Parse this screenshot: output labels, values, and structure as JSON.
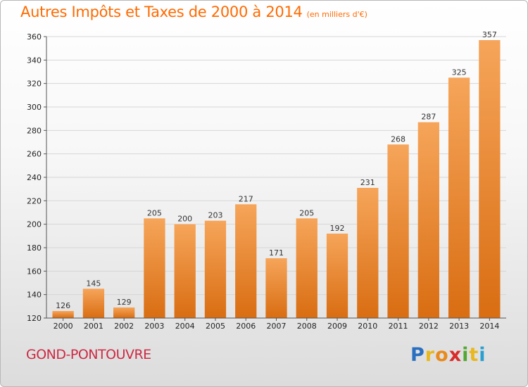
{
  "chart_data": {
    "type": "bar",
    "title": "Autres Impôts et Taxes de 2000 à 2014",
    "unit_note": "(en milliers d'€)",
    "categories": [
      "2000",
      "2001",
      "2002",
      "2003",
      "2004",
      "2005",
      "2006",
      "2007",
      "2008",
      "2009",
      "2010",
      "2011",
      "2012",
      "2013",
      "2014"
    ],
    "values": [
      126,
      145,
      129,
      205,
      200,
      203,
      217,
      171,
      205,
      192,
      231,
      268,
      287,
      325,
      357
    ],
    "ylim": [
      120,
      360
    ],
    "yticks": [
      120,
      140,
      160,
      180,
      200,
      220,
      240,
      260,
      280,
      300,
      320,
      340,
      360
    ],
    "grid": true,
    "xlabel": "",
    "ylabel": "",
    "bar_color_top": "#f6a55a",
    "bar_color_bottom": "#d96d12",
    "grid_color": "#d6d6d6"
  },
  "commune": "GOND-PONTOUVRE",
  "logo": {
    "letters": [
      "P",
      "r",
      "o",
      "x",
      "i",
      "t",
      "i"
    ],
    "colors": [
      "#2b6fc0",
      "#e8b81e",
      "#e98a1c",
      "#d92b2b",
      "#52a832",
      "#e8b81e",
      "#2b9fd0"
    ]
  }
}
